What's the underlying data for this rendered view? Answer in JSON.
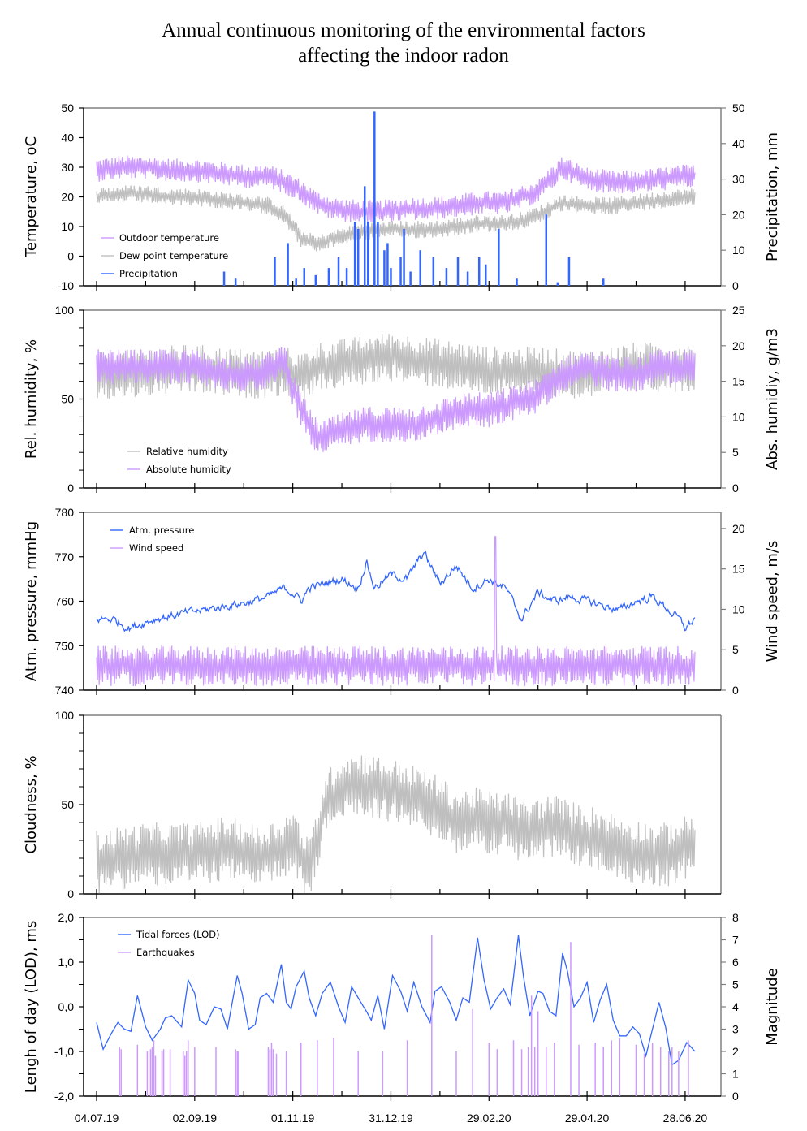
{
  "title": {
    "line1": "Annual continuous monitoring of the environmental factors",
    "line2": "affecting the indoor radon"
  },
  "colors": {
    "purple": "#cc99ff",
    "gray": "#bfbfbf",
    "blue": "#3366ff",
    "frame": "#808080",
    "axis": "#000000"
  },
  "chart_data": [
    {
      "type": "line",
      "panel": "temperature",
      "ylabel": "Temperature, oC",
      "ylim": [
        -10,
        50
      ],
      "yticks": [
        "50",
        "40",
        "30",
        "20",
        "10",
        "0",
        "-10"
      ],
      "y2label": "Precipitation, mm",
      "y2lim": [
        0,
        50
      ],
      "y2ticks": [
        "50",
        "40",
        "30",
        "20",
        "10",
        "0"
      ],
      "legend": [
        "Outdoor temperature",
        "Dew point temperature",
        "Precipitation"
      ],
      "legend_position": "bottom-left",
      "series": [
        {
          "name": "Outdoor temperature",
          "axis": "left",
          "style": "line",
          "color": "#cc99ff",
          "x_days": [
            0,
            15,
            30,
            45,
            60,
            75,
            90,
            105,
            115,
            125,
            135,
            145,
            160,
            175,
            190,
            205,
            220,
            235,
            250,
            260,
            270,
            285,
            300,
            315,
            330,
            345,
            360,
            366
          ],
          "values": [
            29,
            30,
            30,
            29,
            29,
            28,
            27,
            27,
            25,
            22,
            18,
            16,
            15,
            15,
            16,
            16,
            17,
            18,
            18,
            20,
            22,
            30,
            26,
            25,
            25,
            26,
            27,
            27
          ],
          "amplitude": 4
        },
        {
          "name": "Dew point temperature",
          "axis": "left",
          "style": "line",
          "color": "#bfbfbf",
          "x_days": [
            0,
            15,
            30,
            45,
            60,
            75,
            90,
            105,
            115,
            125,
            135,
            145,
            160,
            175,
            190,
            205,
            220,
            235,
            250,
            260,
            270,
            285,
            300,
            315,
            330,
            345,
            360,
            366
          ],
          "values": [
            20,
            21,
            21,
            20,
            20,
            19,
            18,
            17,
            14,
            6,
            4,
            6,
            8,
            9,
            9,
            9,
            10,
            11,
            11,
            12,
            14,
            18,
            17,
            17,
            18,
            19,
            20,
            20
          ],
          "amplitude": 3
        },
        {
          "name": "Precipitation",
          "axis": "right",
          "style": "bar",
          "color": "#3366ff",
          "x_days": [
            78,
            85,
            109,
            117,
            122,
            127,
            134,
            142,
            148,
            153,
            158,
            160,
            164,
            166,
            170,
            172,
            176,
            178,
            180,
            186,
            188,
            192,
            198,
            206,
            214,
            221,
            227,
            234,
            238,
            246,
            257,
            275,
            282,
            289,
            310
          ],
          "values": [
            4,
            2,
            8,
            12,
            2,
            5,
            3,
            5,
            8,
            5,
            18,
            16,
            28,
            18,
            49,
            18,
            10,
            12,
            5,
            8,
            16,
            4,
            10,
            8,
            5,
            8,
            4,
            8,
            6,
            16,
            2,
            20,
            1,
            8,
            2
          ]
        }
      ]
    },
    {
      "type": "line",
      "panel": "humidity",
      "ylabel": "Rel. humidity, %",
      "ylim": [
        0,
        100
      ],
      "yticks": [
        "100",
        "50",
        "0"
      ],
      "y2label": "Abs. humidiy, g/m3",
      "y2lim": [
        0,
        25
      ],
      "y2ticks": [
        "25",
        "20",
        "15",
        "10",
        "5",
        "0"
      ],
      "legend": [
        "Relative humidity",
        "Absolute humidity"
      ],
      "legend_position": "bottom-left",
      "series": [
        {
          "name": "Relative humidity",
          "axis": "left",
          "color": "#bfbfbf",
          "x_days": [
            0,
            20,
            40,
            60,
            80,
            100,
            115,
            125,
            135,
            150,
            165,
            180,
            195,
            210,
            225,
            240,
            255,
            270,
            285,
            300,
            315,
            330,
            345,
            366
          ],
          "values": [
            62,
            64,
            66,
            67,
            65,
            64,
            66,
            62,
            68,
            70,
            72,
            74,
            72,
            70,
            68,
            66,
            65,
            66,
            64,
            64,
            66,
            68,
            68,
            68
          ],
          "amplitude": 14
        },
        {
          "name": "Absolute humidity",
          "axis": "right",
          "color": "#cc99ff",
          "x_days": [
            0,
            20,
            40,
            60,
            80,
            100,
            115,
            120,
            125,
            135,
            150,
            165,
            180,
            195,
            210,
            225,
            240,
            255,
            270,
            285,
            300,
            315,
            330,
            345,
            366
          ],
          "values": [
            17,
            17,
            17,
            17,
            16,
            16,
            18,
            14,
            11,
            7,
            8,
            9,
            9,
            9,
            10,
            11,
            11,
            12,
            13,
            16,
            17,
            16,
            16,
            17,
            17
          ],
          "amplitude": 2.5
        }
      ]
    },
    {
      "type": "line",
      "panel": "pressure-wind",
      "ylabel": "Atm. pressure, mmHg",
      "ylim": [
        740,
        780
      ],
      "yticks": [
        "780",
        "770",
        "760",
        "750",
        "740"
      ],
      "y2label": "Wind speed, m/s",
      "y2lim": [
        0,
        22
      ],
      "y2ticks": [
        "20",
        "15",
        "10",
        "5",
        "0"
      ],
      "legend": [
        "Atm. pressure",
        "Wind speed"
      ],
      "legend_position": "top-left",
      "series": [
        {
          "name": "Atm. pressure",
          "axis": "left",
          "color": "#3366ff",
          "x_days": [
            0,
            10,
            20,
            35,
            50,
            65,
            80,
            95,
            105,
            115,
            120,
            125,
            130,
            140,
            150,
            160,
            165,
            170,
            180,
            190,
            200,
            210,
            220,
            230,
            240,
            250,
            260,
            270,
            280,
            290,
            300,
            310,
            320,
            330,
            340,
            350,
            356,
            360,
            366
          ],
          "values": [
            756,
            756,
            754,
            756,
            757,
            758,
            759,
            760,
            761,
            763,
            762,
            760,
            763,
            764,
            765,
            763,
            769,
            763,
            766,
            765,
            771,
            764,
            768,
            763,
            765,
            763,
            756,
            762,
            760,
            761,
            760,
            759,
            758,
            760,
            761,
            758,
            756,
            754,
            756
          ],
          "noise": 1.5
        },
        {
          "name": "Wind speed",
          "axis": "right",
          "color": "#cc99ff",
          "x_days": [
            0,
            60,
            120,
            200,
            240,
            280,
            320,
            366
          ],
          "values": [
            3,
            3,
            3,
            3,
            3,
            3,
            3,
            3
          ],
          "amplitude": 2.5,
          "peak": {
            "x_day": 244,
            "value": 19
          }
        }
      ]
    },
    {
      "type": "line",
      "panel": "cloudness",
      "ylabel": "Cloudness, %",
      "ylim": [
        0,
        100
      ],
      "yticks": [
        "100",
        "50",
        "0"
      ],
      "legend": [],
      "series": [
        {
          "name": "Cloudness",
          "axis": "left",
          "color": "#bfbfbf",
          "x_days": [
            0,
            30,
            60,
            80,
            100,
            110,
            120,
            130,
            140,
            150,
            160,
            170,
            180,
            190,
            200,
            210,
            220,
            230,
            240,
            250,
            260,
            270,
            280,
            290,
            300,
            310,
            320,
            330,
            340,
            350,
            366
          ],
          "values": [
            18,
            22,
            22,
            26,
            20,
            24,
            30,
            12,
            50,
            60,
            62,
            60,
            58,
            55,
            52,
            48,
            40,
            42,
            40,
            40,
            35,
            36,
            38,
            34,
            32,
            30,
            26,
            24,
            22,
            22,
            28
          ],
          "amplitude": 18
        }
      ]
    },
    {
      "type": "line",
      "panel": "lod-earthquakes",
      "ylabel": "Lengh of day (LOD), ms",
      "ylim": [
        -2.0,
        2.0
      ],
      "yticks": [
        "2,0",
        "1,0",
        "0,0",
        "-1,0",
        "-2,0"
      ],
      "y2label": "Magnitude",
      "y2lim": [
        0,
        8
      ],
      "y2ticks": [
        "8",
        "7",
        "6",
        "5",
        "4",
        "3",
        "2",
        "1",
        "0"
      ],
      "legend": [
        "Tidal forces (LOD)",
        "Earthquakes"
      ],
      "legend_position": "top-left",
      "xticks": [
        "04.07.19",
        "02.09.19",
        "01.11.19",
        "31.12.19",
        "29.02.20",
        "29.04.20",
        "28.06.20"
      ],
      "series": [
        {
          "name": "Tidal forces (LOD)",
          "axis": "left",
          "color": "#3366ff",
          "x_days": [
            0,
            4,
            9,
            13,
            17,
            21,
            25,
            30,
            34,
            39,
            42,
            46,
            52,
            56,
            60,
            63,
            67,
            72,
            76,
            80,
            86,
            89,
            93,
            97,
            100,
            104,
            108,
            113,
            116,
            119,
            122,
            127,
            130,
            134,
            138,
            143,
            148,
            152,
            156,
            160,
            165,
            168,
            172,
            176,
            181,
            186,
            190,
            194,
            199,
            204,
            207,
            211,
            216,
            220,
            224,
            228,
            233,
            237,
            241,
            245,
            249,
            253,
            258,
            261,
            265,
            270,
            273,
            277,
            281,
            285,
            288,
            292,
            296,
            300,
            304,
            308,
            312,
            316,
            320,
            324,
            328,
            332,
            336,
            340,
            344,
            348,
            352,
            356,
            361,
            366
          ],
          "values": [
            -0.35,
            -0.95,
            -0.6,
            -0.35,
            -0.5,
            -0.55,
            0.25,
            -0.45,
            -0.75,
            -0.5,
            -0.25,
            -0.2,
            -0.45,
            0.6,
            0.3,
            -0.3,
            -0.4,
            0.0,
            -0.05,
            -0.5,
            0.7,
            0.3,
            -0.5,
            -0.4,
            0.2,
            0.3,
            0.1,
            0.95,
            0.1,
            -0.05,
            0.45,
            0.8,
            0.2,
            -0.2,
            0.3,
            0.55,
            0.0,
            -0.35,
            0.45,
            0.2,
            -0.1,
            -0.3,
            0.25,
            -0.5,
            0.7,
            0.35,
            -0.1,
            0.55,
            0.0,
            -0.35,
            0.35,
            0.45,
            0.1,
            -0.3,
            0.2,
            0.1,
            1.55,
            0.6,
            -0.05,
            0.2,
            0.4,
            0.05,
            1.6,
            0.7,
            -0.2,
            0.35,
            0.3,
            -0.1,
            -0.2,
            1.2,
            0.8,
            0.0,
            0.2,
            0.55,
            -0.35,
            0.15,
            0.5,
            -0.3,
            -0.65,
            -0.65,
            -0.45,
            -0.6,
            -1.1,
            -0.5,
            0.1,
            -0.45,
            -1.3,
            -1.2,
            -0.8,
            -1.0
          ]
        },
        {
          "name": "Earthquakes",
          "axis": "right",
          "color": "#cc99ff",
          "x_days": [
            14,
            15,
            25,
            31,
            33,
            34,
            35,
            36,
            40,
            41,
            45,
            53,
            54,
            55,
            56,
            60,
            73,
            85,
            86,
            86.5,
            105,
            106,
            107,
            108,
            110,
            116,
            125,
            135,
            145,
            160,
            175,
            190,
            205,
            220,
            230,
            240,
            245,
            255,
            260,
            264,
            266,
            268,
            270,
            275,
            280,
            290,
            295,
            305,
            310,
            315,
            320,
            330,
            335,
            340,
            345,
            350,
            352,
            356,
            362
          ],
          "values": [
            2.2,
            2.1,
            2.3,
            2.0,
            2.1,
            2.2,
            2.5,
            1.8,
            2.0,
            2.1,
            2.1,
            2.0,
            1.8,
            2.0,
            2.5,
            2.2,
            2.2,
            2.1,
            2.0,
            2.0,
            2.2,
            2.1,
            2.4,
            2.1,
            1.9,
            2.0,
            2.4,
            2.5,
            2.6,
            2.0,
            2.0,
            2.5,
            7.2,
            2.0,
            3.9,
            2.4,
            2.1,
            2.5,
            2.1,
            2.2,
            4.5,
            2.2,
            3.8,
            2.2,
            2.4,
            6.9,
            2.3,
            2.4,
            2.2,
            2.5,
            2.6,
            2.3,
            1.9,
            2.4,
            2.2,
            2.0,
            2.2,
            2.0,
            2.5
          ]
        }
      ]
    }
  ]
}
